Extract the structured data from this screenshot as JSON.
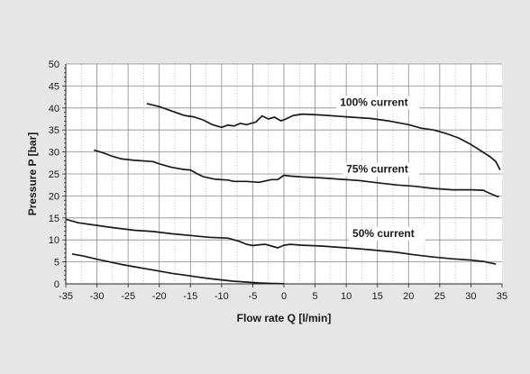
{
  "chart_data": {
    "type": "line",
    "xlabel": "Flow rate Q [l/min]",
    "ylabel": "Pressure P [bar]",
    "xlim": [
      -35,
      35
    ],
    "ylim": [
      0,
      50
    ],
    "xticks": [
      -35,
      -30,
      -25,
      -20,
      -15,
      -10,
      -5,
      0,
      5,
      10,
      15,
      20,
      25,
      30,
      35
    ],
    "yticks": [
      0,
      5,
      10,
      15,
      20,
      25,
      30,
      35,
      40,
      45,
      50
    ],
    "x_minor_step": 2.5,
    "y_minor_step": 1,
    "grid": true,
    "legend": "none",
    "series": [
      {
        "name": "100% current",
        "points": [
          [
            -22,
            41
          ],
          [
            -20,
            40.3
          ],
          [
            -18,
            39.3
          ],
          [
            -16,
            38.3
          ],
          [
            -14.5,
            38
          ],
          [
            -13,
            37.3
          ],
          [
            -11.5,
            36.2
          ],
          [
            -10,
            35.6
          ],
          [
            -9,
            36.1
          ],
          [
            -8,
            35.9
          ],
          [
            -7,
            36.5
          ],
          [
            -6,
            36.2
          ],
          [
            -4.5,
            36.8
          ],
          [
            -3.5,
            38.2
          ],
          [
            -2.5,
            37.5
          ],
          [
            -1.5,
            37.9
          ],
          [
            -0.5,
            37.1
          ],
          [
            0,
            37.3
          ],
          [
            1.5,
            38.3
          ],
          [
            3,
            38.6
          ],
          [
            6,
            38.4
          ],
          [
            10,
            38
          ],
          [
            14,
            37.6
          ],
          [
            17,
            37
          ],
          [
            20,
            36.2
          ],
          [
            22,
            35.4
          ],
          [
            24,
            35
          ],
          [
            26,
            34.2
          ],
          [
            28,
            33.2
          ],
          [
            30,
            31.7
          ],
          [
            32,
            29.9
          ],
          [
            33,
            29
          ],
          [
            34,
            27.8
          ],
          [
            34.7,
            25.9
          ]
        ]
      },
      {
        "name": "75% current",
        "points": [
          [
            -30.5,
            30.4
          ],
          [
            -29,
            29.8
          ],
          [
            -27.5,
            29
          ],
          [
            -26,
            28.4
          ],
          [
            -24,
            28.1
          ],
          [
            -21,
            27.8
          ],
          [
            -20,
            27.3
          ],
          [
            -18,
            26.5
          ],
          [
            -16,
            26
          ],
          [
            -15,
            25.9
          ],
          [
            -14,
            25.1
          ],
          [
            -13,
            24.4
          ],
          [
            -11,
            23.8
          ],
          [
            -9,
            23.6
          ],
          [
            -8,
            23.3
          ],
          [
            -6,
            23.3
          ],
          [
            -4,
            23.1
          ],
          [
            -3,
            23.4
          ],
          [
            -2,
            23.7
          ],
          [
            -1,
            23.7
          ],
          [
            0,
            24.7
          ],
          [
            1,
            24.5
          ],
          [
            3,
            24.3
          ],
          [
            6,
            24.1
          ],
          [
            9,
            23.8
          ],
          [
            12,
            23.5
          ],
          [
            15,
            23
          ],
          [
            18,
            22.5
          ],
          [
            21,
            22.2
          ],
          [
            24,
            21.7
          ],
          [
            27,
            21.4
          ],
          [
            30,
            21.4
          ],
          [
            32,
            21.3
          ],
          [
            33,
            20.6
          ],
          [
            34,
            20
          ],
          [
            34.5,
            19.8
          ]
        ]
      },
      {
        "name": "50% current",
        "points": [
          [
            -35,
            14.7
          ],
          [
            -33,
            13.9
          ],
          [
            -30,
            13.3
          ],
          [
            -27,
            12.7
          ],
          [
            -24,
            12.2
          ],
          [
            -21,
            11.9
          ],
          [
            -18,
            11.4
          ],
          [
            -15,
            11
          ],
          [
            -12,
            10.6
          ],
          [
            -9,
            10.4
          ],
          [
            -7,
            9.6
          ],
          [
            -6,
            9
          ],
          [
            -5,
            8.7
          ],
          [
            -4,
            8.9
          ],
          [
            -3,
            9
          ],
          [
            -2,
            8.6
          ],
          [
            -1,
            8.2
          ],
          [
            0,
            8.8
          ],
          [
            1,
            9
          ],
          [
            3,
            8.8
          ],
          [
            6,
            8.6
          ],
          [
            9,
            8.3
          ],
          [
            12,
            8
          ],
          [
            15,
            7.6
          ],
          [
            18,
            7.2
          ],
          [
            21,
            6.6
          ],
          [
            24,
            6.1
          ],
          [
            27,
            5.7
          ],
          [
            30,
            5.4
          ],
          [
            32,
            5.1
          ],
          [
            33,
            4.8
          ],
          [
            34,
            4.5
          ]
        ]
      },
      {
        "name": "",
        "points": [
          [
            -34,
            6.8
          ],
          [
            -32,
            6.3
          ],
          [
            -30,
            5.6
          ],
          [
            -28,
            5
          ],
          [
            -26,
            4.4
          ],
          [
            -24,
            3.9
          ],
          [
            -22,
            3.4
          ],
          [
            -20,
            2.9
          ],
          [
            -18,
            2.4
          ],
          [
            -16,
            2
          ],
          [
            -14,
            1.6
          ],
          [
            -12,
            1.2
          ],
          [
            -10,
            0.9
          ],
          [
            -8,
            0.6
          ],
          [
            -6,
            0.4
          ],
          [
            -4,
            0.2
          ],
          [
            -2,
            0.1
          ],
          [
            0,
            0.05
          ]
        ]
      }
    ],
    "annotations": [
      {
        "text": "100% current",
        "x": 9,
        "y": 40.5
      },
      {
        "text": "75% current",
        "x": 10,
        "y": 25.3
      },
      {
        "text": "50% current",
        "x": 11,
        "y": 10.7
      }
    ]
  }
}
